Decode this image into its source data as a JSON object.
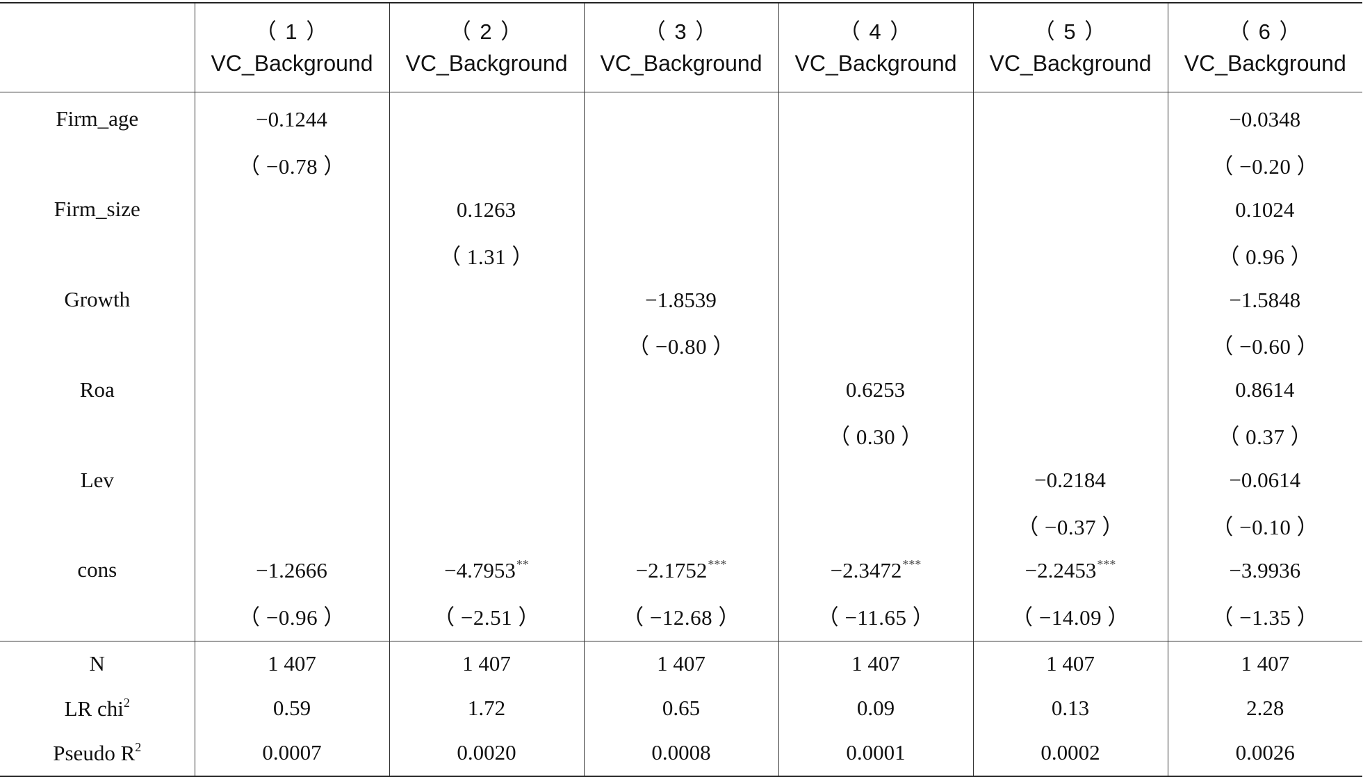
{
  "table": {
    "models": [
      {
        "number": "（ 1 ）",
        "dependent": "VC_Background"
      },
      {
        "number": "（ 2 ）",
        "dependent": "VC_Background"
      },
      {
        "number": "（ 3 ）",
        "dependent": "VC_Background"
      },
      {
        "number": "（ 4 ）",
        "dependent": "VC_Background"
      },
      {
        "number": "（ 5 ）",
        "dependent": "VC_Background"
      },
      {
        "number": "（ 6 ）",
        "dependent": "VC_Background"
      }
    ],
    "variables": [
      {
        "name": "Firm_age",
        "coef": [
          "−0.1244",
          "",
          "",
          "",
          "",
          "−0.0348"
        ],
        "stars": [
          "",
          "",
          "",
          "",
          "",
          ""
        ],
        "tstat": [
          "（ −0.78 ）",
          "",
          "",
          "",
          "",
          "（ −0.20 ）"
        ]
      },
      {
        "name": "Firm_size",
        "coef": [
          "",
          "0.1263",
          "",
          "",
          "",
          "0.1024"
        ],
        "stars": [
          "",
          "",
          "",
          "",
          "",
          ""
        ],
        "tstat": [
          "",
          "（ 1.31 ）",
          "",
          "",
          "",
          "（ 0.96 ）"
        ]
      },
      {
        "name": "Growth",
        "coef": [
          "",
          "",
          "−1.8539",
          "",
          "",
          "−1.5848"
        ],
        "stars": [
          "",
          "",
          "",
          "",
          "",
          ""
        ],
        "tstat": [
          "",
          "",
          "（ −0.80 ）",
          "",
          "",
          "（ −0.60 ）"
        ]
      },
      {
        "name": "Roa",
        "coef": [
          "",
          "",
          "",
          "0.6253",
          "",
          "0.8614"
        ],
        "stars": [
          "",
          "",
          "",
          "",
          "",
          ""
        ],
        "tstat": [
          "",
          "",
          "",
          "（ 0.30 ）",
          "",
          "（ 0.37 ）"
        ]
      },
      {
        "name": "Lev",
        "coef": [
          "",
          "",
          "",
          "",
          "−0.2184",
          "−0.0614"
        ],
        "stars": [
          "",
          "",
          "",
          "",
          "",
          ""
        ],
        "tstat": [
          "",
          "",
          "",
          "",
          "（ −0.37 ）",
          "（ −0.10 ）"
        ]
      },
      {
        "name": "cons",
        "coef": [
          "−1.2666",
          "−4.7953",
          "−2.1752",
          "−2.3472",
          "−2.2453",
          "−3.9936"
        ],
        "stars": [
          "",
          "**",
          "***",
          "***",
          "***",
          ""
        ],
        "tstat": [
          "（ −0.96 ）",
          "（ −2.51 ）",
          "（ −12.68 ）",
          "（ −11.65 ）",
          "（ −14.09 ）",
          "（ −1.35 ）"
        ]
      }
    ],
    "footer": [
      {
        "label": "N",
        "label_sup": "",
        "values": [
          "1 407",
          "1 407",
          "1 407",
          "1 407",
          "1 407",
          "1 407"
        ]
      },
      {
        "label": "LR chi",
        "label_sup": "2",
        "values": [
          "0.59",
          "1.72",
          "0.65",
          "0.09",
          "0.13",
          "2.28"
        ]
      },
      {
        "label": "Pseudo R",
        "label_sup": "2",
        "values": [
          "0.0007",
          "0.0020",
          "0.0008",
          "0.0001",
          "0.0002",
          "0.0026"
        ]
      }
    ]
  }
}
